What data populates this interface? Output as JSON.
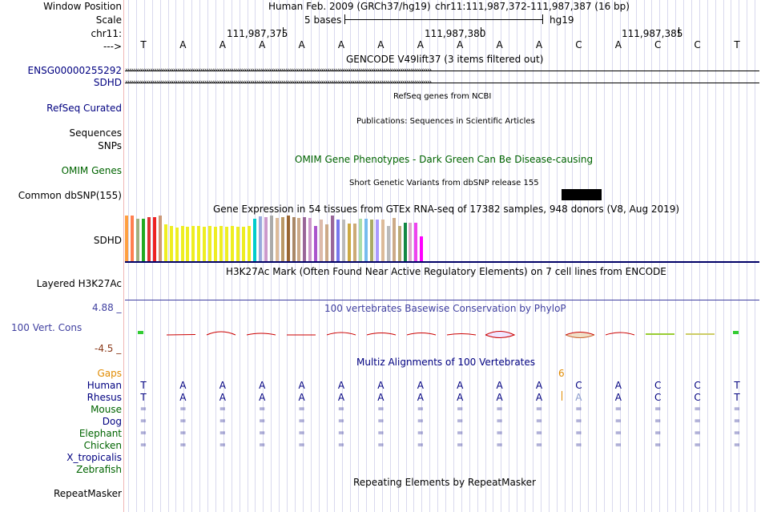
{
  "header": {
    "window_position_label": "Window Position",
    "scale_label": "Scale",
    "chrom_label": "chr11:",
    "arrow_label": "--->",
    "assembly": "Human Feb. 2009 (GRCh37/hg19)",
    "position": "chr11:111,987,372-111,987,387 (16 bp)",
    "scale_text": "5 bases",
    "db": "hg19",
    "coords": [
      "111,987,375",
      "111,987,380",
      "111,987,385"
    ]
  },
  "sequence": [
    "T",
    "A",
    "A",
    "A",
    "A",
    "A",
    "A",
    "A",
    "A",
    "A",
    "A",
    "C",
    "A",
    "C",
    "C",
    "T"
  ],
  "tracks": {
    "gencode": {
      "title": "GENCODE V49lift37 (3 items filtered out)",
      "items": [
        "ENSG00000255292",
        "SDHD"
      ]
    },
    "refseq": {
      "label": "RefSeq Curated",
      "title": "RefSeq genes from NCBI"
    },
    "pubs": {
      "label": "Sequences",
      "title": "Publications: Sequences in Scientific Articles"
    },
    "snps": {
      "label": "SNPs"
    },
    "omim": {
      "label": "OMIM Genes",
      "title": "OMIM Gene Phenotypes - Dark Green Can Be Disease-causing"
    },
    "dbsnp": {
      "label": "Common dbSNP(155)",
      "title": "Short Genetic Variants from dbSNP release 155"
    },
    "gtex": {
      "label": "SDHD",
      "title": "Gene Expression in 54 tissues from GTEx RNA-seq of 17382 samples, 948 donors (V8, Aug 2019)"
    },
    "h3k27ac": {
      "label": "Layered H3K27Ac",
      "title": "H3K27Ac Mark (Often Found Near Active Regulatory Elements) on 7 cell lines from ENCODE"
    },
    "cons": {
      "label": "100 Vert. Cons",
      "title": "100 vertebrates Basewise Conservation by PhyloP",
      "max": "4.88 _",
      "min": "-4.5 _"
    },
    "multiz": {
      "title": "Multiz Alignments of 100 Vertebrates",
      "gaps_label": "Gaps",
      "gap_count": "6",
      "species": [
        "Human",
        "Rhesus",
        "Mouse",
        "Dog",
        "Elephant",
        "Chicken",
        "X_tropicalis",
        "Zebrafish"
      ]
    },
    "rmsk": {
      "label": "RepeatMasker",
      "title": "Repeating Elements by RepeatMasker"
    }
  },
  "alignment": {
    "rhesus": [
      "T",
      "A",
      "A",
      "A",
      "A",
      "A",
      "A",
      "A",
      "A",
      "A",
      "A",
      "A",
      "A",
      "C",
      "C",
      "T"
    ],
    "equals": "="
  },
  "colors": {
    "label_blue": "#000080",
    "label_green": "#006400",
    "gaps_orange": "#e08a00",
    "cons_blue": "#4040a0",
    "cons_red": "#cc0000"
  },
  "chart_data": {
    "type": "bar",
    "title": "Gene Expression in 54 tissues from GTEx RNA-seq of 17382 samples, 948 donors (V8, Aug 2019)",
    "ylim": [
      0,
      1
    ],
    "values": [
      1,
      1,
      0.93,
      0.93,
      0.96,
      0.96,
      1,
      0.8,
      0.77,
      0.74,
      0.78,
      0.75,
      0.77,
      0.77,
      0.75,
      0.77,
      0.75,
      0.77,
      0.75,
      0.78,
      0.75,
      0.76,
      0.78,
      0.93,
      0.98,
      0.97,
      1,
      0.95,
      0.97,
      1,
      0.96,
      0.95,
      0.96,
      0.94,
      0.78,
      0.92,
      0.8,
      1,
      0.92,
      0.92,
      0.83,
      0.83,
      0.93,
      0.93,
      0.92,
      0.92,
      0.91,
      0.78,
      0.94,
      0.78,
      0.85,
      0.85,
      0.85,
      0.55
    ],
    "colors": [
      "#ff9f40",
      "#ff7f50",
      "#a0b080",
      "#22aa22",
      "#dd3333",
      "#ee2222",
      "#cc9977",
      "#eeee22",
      "#eeee22",
      "#eeee22",
      "#eeee22",
      "#eeee22",
      "#eeee22",
      "#eeee22",
      "#eeee22",
      "#eeee22",
      "#eeee22",
      "#eeee22",
      "#eeee22",
      "#eeee22",
      "#eeee22",
      "#eeee22",
      "#eeee22",
      "#00cccc",
      "#99aadd",
      "#cc99cc",
      "#aaaaaa",
      "#ddbb99",
      "#bb9966",
      "#996633",
      "#aa8866",
      "#ccaa88",
      "#996699",
      "#cc99cc",
      "#aa55cc",
      "#ddbbaa",
      "#ccaa88",
      "#996699",
      "#7777ee",
      "#bbbbbb",
      "#ccaa44",
      "#ccaa77",
      "#aaddaa",
      "#77bbee",
      "#aaaa66",
      "#aa99ff",
      "#ddbb99",
      "#bbbbbb",
      "#ccaa88",
      "#bbaa77",
      "#118844",
      "#ddaacc",
      "#ee44ee",
      "#ff00ff"
    ]
  }
}
